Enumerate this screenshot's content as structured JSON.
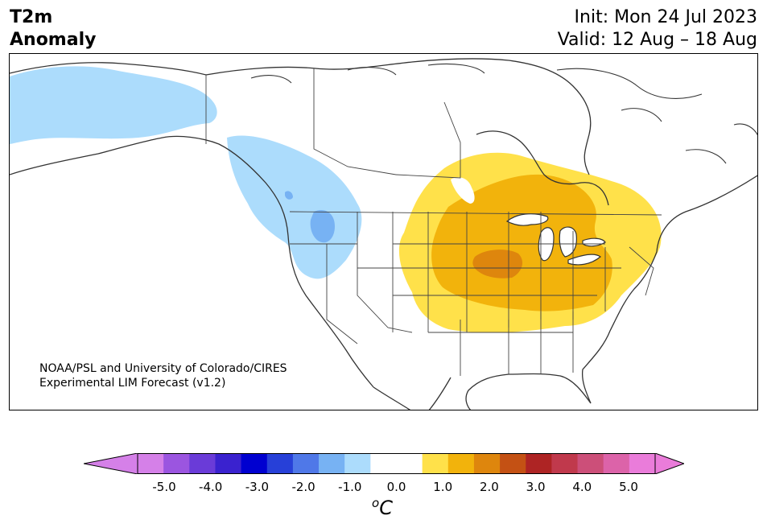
{
  "header": {
    "title_line1": "T2m",
    "title_line2": "Anomaly",
    "init_line": "Init: Mon 24 Jul 2023",
    "valid_line": "Valid: 12 Aug – 18 Aug"
  },
  "credit": {
    "line1": "NOAA/PSL and University of Colorado/CIRES",
    "line2": "Experimental LIM Forecast (v1.2)"
  },
  "colorbar": {
    "unit_symbol": "o",
    "unit_letter": "C",
    "ticks": [
      "-5.0",
      "-4.0",
      "-3.0",
      "-2.0",
      "-1.0",
      "0.0",
      "1.0",
      "2.0",
      "3.0",
      "4.0",
      "5.0"
    ],
    "colors": [
      "#d580e8",
      "#9b55e0",
      "#6a3bd8",
      "#3a22cf",
      "#0000d0",
      "#2740d8",
      "#4f78e8",
      "#77b2f3",
      "#acdcfc",
      "#ffffff",
      "#ffffff",
      "#ffe14a",
      "#f2b30c",
      "#de860d",
      "#c45114",
      "#ae2424",
      "#c0394c",
      "#cc4f79",
      "#dc63a9",
      "#ea7cda"
    ],
    "under_color": "#d580e8",
    "over_color": "#ea7cda"
  }
}
